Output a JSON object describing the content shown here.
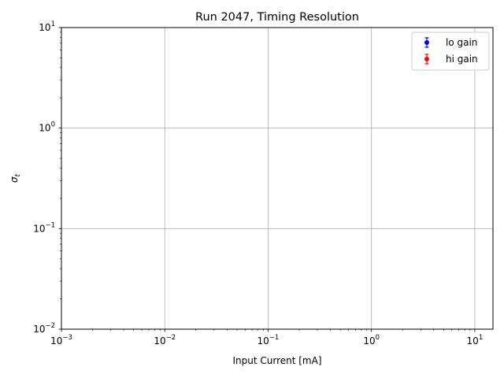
{
  "chart_data": {
    "type": "scatter",
    "title": "Run 2047, Timing Resolution",
    "xlabel": "Input Current [mA]",
    "ylabel_base": "σ",
    "ylabel_sub": "t",
    "xscale": "log",
    "yscale": "log",
    "xlim": [
      0.001,
      15
    ],
    "ylim": [
      0.01,
      10
    ],
    "grid": true,
    "legend_placement": "upper-right",
    "x_ticks": [
      {
        "value": 0.001,
        "base": "10",
        "exp": "−3"
      },
      {
        "value": 0.01,
        "base": "10",
        "exp": "−2"
      },
      {
        "value": 0.1,
        "base": "10",
        "exp": "−1"
      },
      {
        "value": 1,
        "base": "10",
        "exp": "0"
      },
      {
        "value": 10,
        "base": "10",
        "exp": "1"
      }
    ],
    "y_ticks": [
      {
        "value": 0.01,
        "base": "10",
        "exp": "−2"
      },
      {
        "value": 0.1,
        "base": "10",
        "exp": "−1"
      },
      {
        "value": 1,
        "base": "10",
        "exp": "0"
      },
      {
        "value": 10,
        "base": "10",
        "exp": "1"
      }
    ],
    "series": [
      {
        "name": "lo gain",
        "color": "#0000ff",
        "marker": "o",
        "errorbars": true,
        "points": []
      },
      {
        "name": "hi gain",
        "color": "#ff0000",
        "marker": "o",
        "errorbars": true,
        "points": []
      }
    ]
  }
}
